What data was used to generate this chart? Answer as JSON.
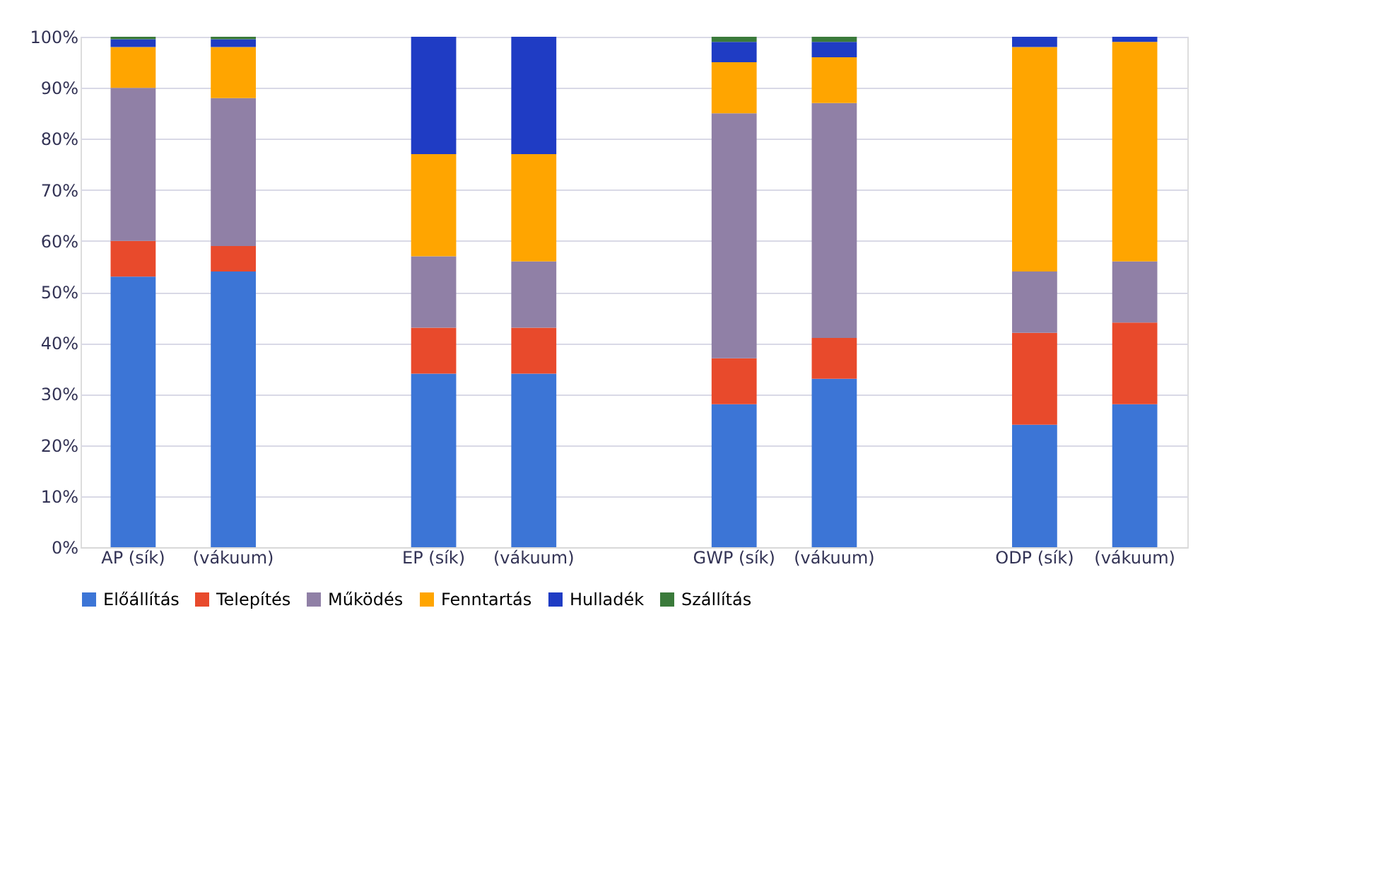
{
  "chart_data": {
    "type": "bar",
    "stacked": true,
    "categories": [
      "AP (sík)",
      "(vákuum)",
      null,
      "EP (sík)",
      "(vákuum)",
      null,
      "GWP (sík)",
      "(vákuum)",
      null,
      "ODP  (sík)",
      "(vákuum)"
    ],
    "series": [
      {
        "name": "Előállítás",
        "color": "#3c75d6",
        "values": [
          53,
          54,
          null,
          34,
          34,
          null,
          28,
          33,
          null,
          24,
          28
        ]
      },
      {
        "name": "Telepítés",
        "color": "#e84a2c",
        "values": [
          7,
          5,
          null,
          9,
          9,
          null,
          9,
          8,
          null,
          18,
          16
        ]
      },
      {
        "name": "Működés",
        "color": "#9080a6",
        "values": [
          30,
          29,
          null,
          14,
          13,
          null,
          48,
          46,
          null,
          12,
          12
        ]
      },
      {
        "name": "Fenntartás",
        "color": "#ffa500",
        "values": [
          8,
          10,
          null,
          20,
          21,
          null,
          10,
          9,
          null,
          44,
          43
        ]
      },
      {
        "name": "Hulladék",
        "color": "#1f3cc4",
        "values": [
          1.5,
          1.5,
          null,
          23,
          23,
          null,
          4,
          3,
          null,
          2,
          1
        ]
      },
      {
        "name": "Szállítás",
        "color": "#3a7a3a",
        "values": [
          0.5,
          0.5,
          null,
          0,
          0,
          null,
          1,
          1,
          null,
          0,
          0
        ]
      }
    ],
    "ylim": [
      0,
      100
    ],
    "yticks": [
      {
        "value": 0,
        "label": "0%"
      },
      {
        "value": 10,
        "label": "10%"
      },
      {
        "value": 20,
        "label": "20%"
      },
      {
        "value": 30,
        "label": "30%"
      },
      {
        "value": 40,
        "label": "40%"
      },
      {
        "value": 50,
        "label": "50%"
      },
      {
        "value": 60,
        "label": "60%"
      },
      {
        "value": 70,
        "label": "70%"
      },
      {
        "value": 80,
        "label": "80%"
      },
      {
        "value": 90,
        "label": "90%"
      },
      {
        "value": 100,
        "label": "100%"
      }
    ],
    "grid": "y",
    "legend": "bottom"
  }
}
